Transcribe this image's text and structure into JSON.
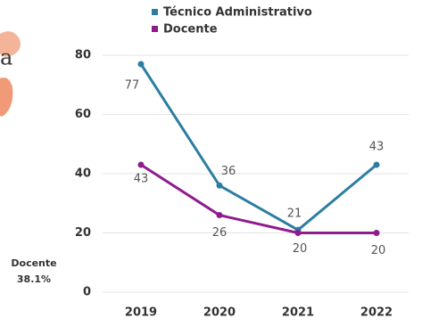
{
  "side_text": {
    "fragment": "a",
    "label": "Docente",
    "share": "38.1%"
  },
  "chart_data": {
    "type": "line",
    "categories": [
      "2019",
      "2020",
      "2021",
      "2022"
    ],
    "series": [
      {
        "name": "Técnico Administrativo",
        "color": "#2b7ea1",
        "values": [
          77,
          36,
          21,
          43
        ]
      },
      {
        "name": "Docente",
        "color": "#8e1c8e",
        "values": [
          43,
          26,
          20,
          20
        ]
      }
    ],
    "ylim": [
      0,
      80
    ],
    "yticks": [
      0,
      20,
      40,
      60,
      80
    ],
    "grid": true,
    "legend": "top"
  }
}
